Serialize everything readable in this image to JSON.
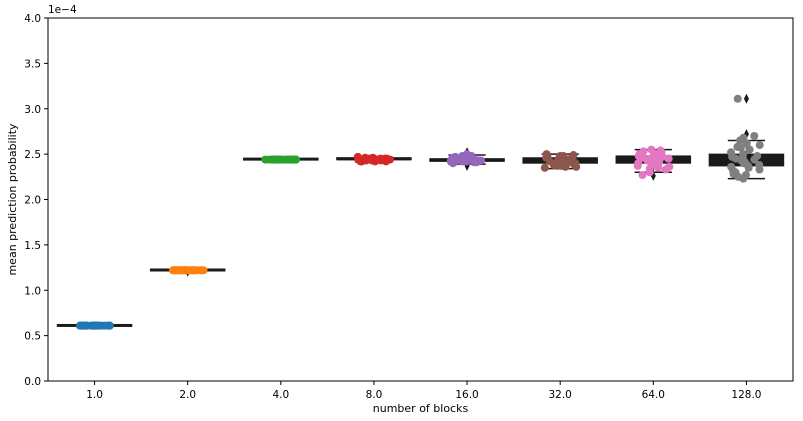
{
  "chart_data": {
    "type": "scatter",
    "subtype": "box-plot with jittered strip points",
    "title": "",
    "xlabel": "number of blocks",
    "ylabel": "mean prediction probability",
    "y_scale_label": "1e−4",
    "categories": [
      "1.0",
      "2.0",
      "4.0",
      "8.0",
      "16.0",
      "32.0",
      "64.0",
      "128.0"
    ],
    "ylim": [
      0,
      4.0
    ],
    "y_unit_multiplier": 0.0001,
    "yticks": [
      "0.0",
      "0.5",
      "1.0",
      "1.5",
      "2.0",
      "2.5",
      "3.0",
      "3.5",
      "4.0"
    ],
    "grid": false,
    "legend": "none",
    "colors": [
      "#1f77b4",
      "#ff7f0e",
      "#2ca02c",
      "#d62728",
      "#9467bd",
      "#8c564b",
      "#e377c2",
      "#7f7f7f"
    ],
    "box_color": "#1a1a1a",
    "boxes": [
      {
        "category": "1.0",
        "q1": 0.61,
        "median": 0.61,
        "q3": 0.612,
        "whisker_low": 0.605,
        "whisker_high": 0.615,
        "outliers": []
      },
      {
        "category": "2.0",
        "q1": 1.22,
        "median": 1.22,
        "q3": 1.223,
        "whisker_low": 1.215,
        "whisker_high": 1.228,
        "outliers": [
          1.205
        ]
      },
      {
        "category": "4.0",
        "q1": 2.435,
        "median": 2.44,
        "q3": 2.445,
        "whisker_low": 2.43,
        "whisker_high": 2.45,
        "outliers": []
      },
      {
        "category": "8.0",
        "q1": 2.43,
        "median": 2.44,
        "q3": 2.45,
        "whisker_low": 2.41,
        "whisker_high": 2.47,
        "outliers": []
      },
      {
        "category": "16.0",
        "q1": 2.42,
        "median": 2.44,
        "q3": 2.45,
        "whisker_low": 2.39,
        "whisker_high": 2.49,
        "outliers": [
          2.37,
          2.52
        ]
      },
      {
        "category": "32.0",
        "q1": 2.4,
        "median": 2.42,
        "q3": 2.46,
        "whisker_low": 2.34,
        "whisker_high": 2.5,
        "outliers": []
      },
      {
        "category": "64.0",
        "q1": 2.4,
        "median": 2.45,
        "q3": 2.48,
        "whisker_low": 2.3,
        "whisker_high": 2.55,
        "outliers": [
          2.26
        ]
      },
      {
        "category": "128.0",
        "q1": 2.37,
        "median": 2.43,
        "q3": 2.5,
        "whisker_low": 2.23,
        "whisker_high": 2.65,
        "outliers": [
          2.72,
          3.11
        ]
      }
    ],
    "series": [
      {
        "category": "1.0",
        "values": [
          0.61,
          0.61,
          0.61,
          0.61,
          0.61,
          0.61,
          0.61,
          0.61,
          0.61,
          0.61,
          0.61,
          0.61,
          0.61,
          0.61,
          0.61,
          0.61,
          0.61,
          0.61,
          0.61,
          0.61,
          0.61,
          0.61,
          0.61,
          0.61,
          0.61,
          0.61,
          0.61,
          0.61,
          0.61,
          0.61
        ]
      },
      {
        "category": "2.0",
        "values": [
          1.22,
          1.22,
          1.22,
          1.22,
          1.22,
          1.22,
          1.22,
          1.22,
          1.22,
          1.22,
          1.22,
          1.22,
          1.22,
          1.22,
          1.22,
          1.22,
          1.22,
          1.22,
          1.22,
          1.22,
          1.22,
          1.22,
          1.22,
          1.22,
          1.22,
          1.22,
          1.22,
          1.22,
          1.22,
          1.22
        ]
      },
      {
        "category": "4.0",
        "values": [
          2.44,
          2.44,
          2.44,
          2.44,
          2.44,
          2.44,
          2.44,
          2.44,
          2.44,
          2.44,
          2.44,
          2.44,
          2.44,
          2.44,
          2.44,
          2.44,
          2.44,
          2.44,
          2.44,
          2.44,
          2.44,
          2.44,
          2.44,
          2.44,
          2.44,
          2.44,
          2.44,
          2.44,
          2.44,
          2.44
        ]
      },
      {
        "category": "8.0",
        "values": [
          2.47,
          2.45,
          2.44,
          2.43,
          2.42,
          2.44,
          2.45,
          2.43,
          2.44,
          2.46,
          2.42,
          2.44,
          2.45,
          2.43,
          2.44,
          2.44,
          2.43,
          2.45,
          2.44,
          2.42,
          2.46,
          2.43,
          2.44,
          2.45,
          2.43,
          2.44,
          2.42,
          2.45,
          2.44,
          2.43
        ]
      },
      {
        "category": "16.0",
        "values": [
          2.5,
          2.46,
          2.44,
          2.42,
          2.4,
          2.48,
          2.45,
          2.43,
          2.41,
          2.47,
          2.44,
          2.42,
          2.46,
          2.43,
          2.45,
          2.41,
          2.44,
          2.47,
          2.43,
          2.42,
          2.45,
          2.44,
          2.46,
          2.43,
          2.41,
          2.48,
          2.44,
          2.42,
          2.45,
          2.43
        ]
      },
      {
        "category": "32.0",
        "values": [
          2.5,
          2.46,
          2.42,
          2.38,
          2.35,
          2.48,
          2.44,
          2.4,
          2.37,
          2.49,
          2.43,
          2.39,
          2.46,
          2.41,
          2.36,
          2.47,
          2.42,
          2.38,
          2.45,
          2.4,
          2.43,
          2.37,
          2.48,
          2.41,
          2.44,
          2.39,
          2.46,
          2.36,
          2.42,
          2.45
        ]
      },
      {
        "category": "64.0",
        "values": [
          2.55,
          2.5,
          2.45,
          2.4,
          2.35,
          2.3,
          2.52,
          2.47,
          2.42,
          2.38,
          2.33,
          2.54,
          2.48,
          2.44,
          2.39,
          2.36,
          2.5,
          2.46,
          2.41,
          2.27,
          2.53,
          2.49,
          2.43,
          2.37,
          2.45,
          2.51,
          2.4,
          2.34,
          2.47,
          2.42
        ]
      },
      {
        "category": "128.0",
        "values": [
          3.11,
          2.7,
          2.65,
          2.6,
          2.55,
          2.5,
          2.48,
          2.45,
          2.43,
          2.4,
          2.38,
          2.35,
          2.32,
          2.3,
          2.27,
          2.25,
          2.23,
          2.62,
          2.57,
          2.52,
          2.47,
          2.44,
          2.41,
          2.37,
          2.33,
          2.28,
          2.68,
          2.58,
          2.46,
          2.36
        ]
      }
    ]
  }
}
